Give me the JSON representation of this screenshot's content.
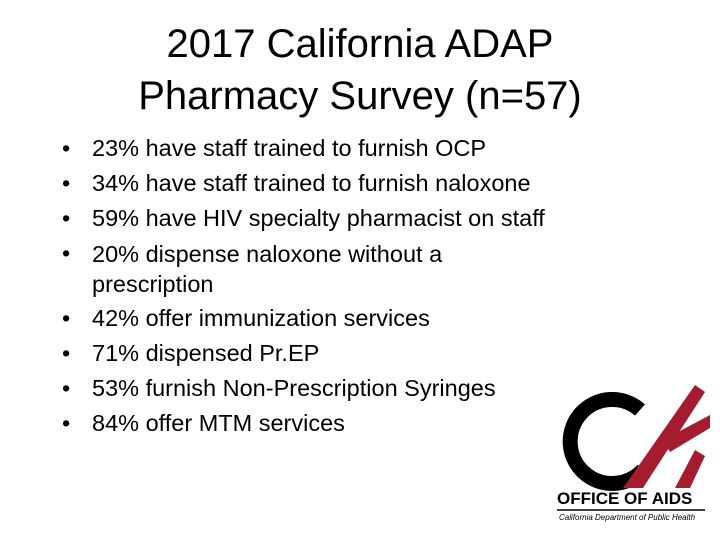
{
  "title_lines": [
    "2017 California ADAP",
    "Pharmacy Survey (n=57)"
  ],
  "bullets": [
    "23% have staff trained to furnish OCP",
    "34% have staff trained to furnish naloxone",
    "59% have HIV specialty pharmacist on staff",
    "20% dispense naloxone without a prescription",
    "42% offer immunization services",
    "71% dispensed Pr.EP",
    "53% furnish Non-Prescription Syringes",
    "84% offer MTM services"
  ],
  "logo": {
    "name": "OFFICE OF AIDS",
    "department": "California Department of Public Health"
  }
}
